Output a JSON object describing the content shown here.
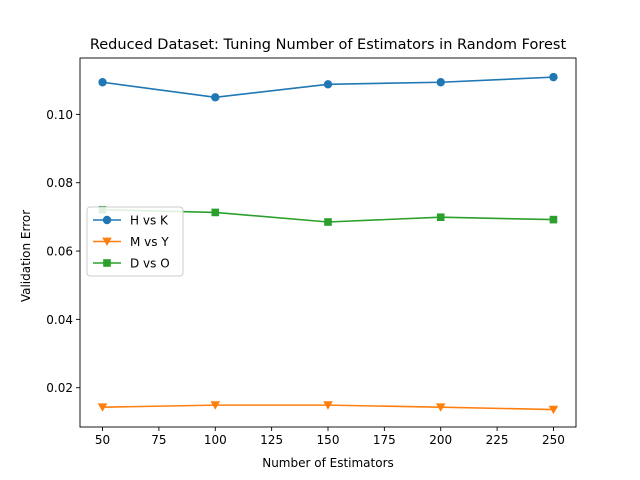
{
  "chart_data": {
    "type": "line",
    "title": "Reduced Dataset: Tuning Number of Estimators in Random Forest",
    "xlabel": "Number of Estimators",
    "ylabel": "Validation Error",
    "x": [
      50,
      100,
      150,
      200,
      250
    ],
    "xlim": [
      40,
      260
    ],
    "ylim": [
      0.0085,
      0.1165
    ],
    "xticks": [
      50,
      75,
      100,
      125,
      150,
      175,
      200,
      225,
      250
    ],
    "xtick_labels": [
      "50",
      "75",
      "100",
      "125",
      "150",
      "175",
      "200",
      "225",
      "250"
    ],
    "yticks": [
      0.02,
      0.04,
      0.06,
      0.08,
      0.1
    ],
    "ytick_labels": [
      "0.02",
      "0.04",
      "0.06",
      "0.08",
      "0.10"
    ],
    "grid": false,
    "legend_position": "center-left",
    "series": [
      {
        "name": "H vs K",
        "values": [
          0.1094,
          0.105,
          0.1088,
          0.1094,
          0.1109
        ],
        "color": "#1f77b4",
        "marker": "circle"
      },
      {
        "name": "M vs Y",
        "values": [
          0.0143,
          0.0149,
          0.0149,
          0.0143,
          0.0136
        ],
        "color": "#ff7f0e",
        "marker": "triangle-down"
      },
      {
        "name": "D vs O",
        "values": [
          0.0721,
          0.0713,
          0.0685,
          0.0699,
          0.0692
        ],
        "color": "#2ca02c",
        "marker": "square"
      }
    ]
  }
}
